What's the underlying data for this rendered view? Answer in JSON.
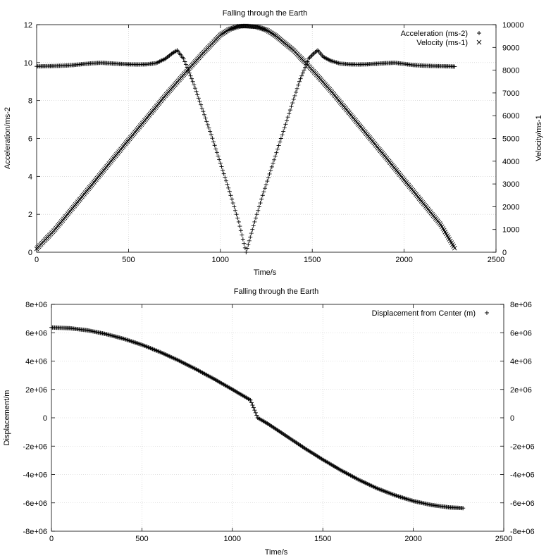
{
  "chart_data": [
    {
      "type": "scatter",
      "title": "Falling through the Earth",
      "xlabel": "Time/s",
      "ylabel": "Acceleration/ms-2",
      "y2label": "Velocity/ms-1",
      "xlim": [
        0,
        2500
      ],
      "ylim": [
        0,
        12
      ],
      "y2lim": [
        0,
        10000
      ],
      "x_ticks": [
        "0",
        "500",
        "1000",
        "1500",
        "2000",
        "2500"
      ],
      "y_ticks": [
        "0",
        "2",
        "4",
        "6",
        "8",
        "10",
        "12"
      ],
      "y2_ticks": [
        "0",
        "1000",
        "2000",
        "3000",
        "4000",
        "5000",
        "6000",
        "7000",
        "8000",
        "9000",
        "10000"
      ],
      "grid": true,
      "legend_position": "top-right",
      "series": [
        {
          "name": "Acceleration (ms-2)",
          "marker": "+",
          "axis": "y1",
          "x": [
            0,
            50,
            100,
            150,
            200,
            250,
            300,
            350,
            400,
            450,
            500,
            550,
            600,
            650,
            700,
            740,
            765,
            800,
            850,
            900,
            950,
            1000,
            1050,
            1100,
            1140,
            1180,
            1230,
            1280,
            1330,
            1380,
            1430,
            1480,
            1510,
            1530,
            1560,
            1600,
            1650,
            1700,
            1750,
            1800,
            1850,
            1900,
            1950,
            2000,
            2050,
            2100,
            2150,
            2200,
            2250,
            2275
          ],
          "y": [
            9.8,
            9.81,
            9.82,
            9.84,
            9.87,
            9.92,
            9.96,
            9.99,
            9.96,
            9.93,
            9.91,
            9.9,
            9.91,
            9.97,
            10.2,
            10.5,
            10.65,
            10.2,
            9.0,
            7.6,
            6.2,
            4.7,
            3.2,
            1.6,
            0.0,
            1.4,
            3.0,
            4.5,
            6.0,
            7.5,
            9.0,
            10.2,
            10.5,
            10.65,
            10.3,
            10.1,
            9.95,
            9.91,
            9.9,
            9.91,
            9.94,
            9.97,
            9.99,
            9.93,
            9.87,
            9.84,
            9.82,
            9.81,
            9.8,
            9.79
          ]
        },
        {
          "name": "Velocity (ms-1)",
          "marker": "x",
          "axis": "y2",
          "x": [
            0,
            100,
            200,
            300,
            400,
            500,
            600,
            700,
            800,
            900,
            1000,
            1050,
            1100,
            1140,
            1200,
            1250,
            1300,
            1400,
            1500,
            1600,
            1700,
            1800,
            1900,
            2000,
            2100,
            2200,
            2275
          ],
          "y": [
            150,
            1000,
            1980,
            2960,
            3950,
            4930,
            5900,
            6880,
            7800,
            8700,
            9550,
            9800,
            9930,
            9940,
            9900,
            9770,
            9520,
            8860,
            8010,
            7100,
            6130,
            5150,
            4170,
            3180,
            2190,
            1200,
            180
          ]
        }
      ]
    },
    {
      "type": "scatter",
      "title": "Falling through the Earth",
      "xlabel": "Time/s",
      "ylabel": "Displacement/m",
      "xlim": [
        0,
        2500
      ],
      "ylim": [
        -8000000,
        8000000
      ],
      "x_ticks": [
        "0",
        "500",
        "1000",
        "1500",
        "2000",
        "2500"
      ],
      "y_ticks": [
        "-8e+06",
        "-6e+06",
        "-4e+06",
        "-2e+06",
        "0",
        "2e+06",
        "4e+06",
        "6e+06",
        "8e+06"
      ],
      "y2_ticks": [
        "-8e+06",
        "-6e+06",
        "-4e+06",
        "-2e+06",
        "0",
        "2e+06",
        "4e+06",
        "6e+06",
        "8e+06"
      ],
      "grid": true,
      "legend_position": "top-right",
      "series": [
        {
          "name": "Displacement from Center (m)",
          "marker": "+",
          "axis": "y1",
          "x": [
            0,
            100,
            200,
            300,
            400,
            500,
            600,
            700,
            800,
            900,
            1000,
            1100,
            1140,
            1200,
            1300,
            1400,
            1500,
            1600,
            1700,
            1800,
            1900,
            2000,
            2100,
            2200,
            2275
          ],
          "y": [
            6370000,
            6320000,
            6170000,
            5910000,
            5570000,
            5150000,
            4640000,
            4060000,
            3420000,
            2730000,
            2000000,
            1250000,
            0,
            -450000,
            -1300000,
            -2150000,
            -2950000,
            -3700000,
            -4380000,
            -4980000,
            -5470000,
            -5870000,
            -6150000,
            -6320000,
            -6370000
          ]
        }
      ]
    }
  ]
}
